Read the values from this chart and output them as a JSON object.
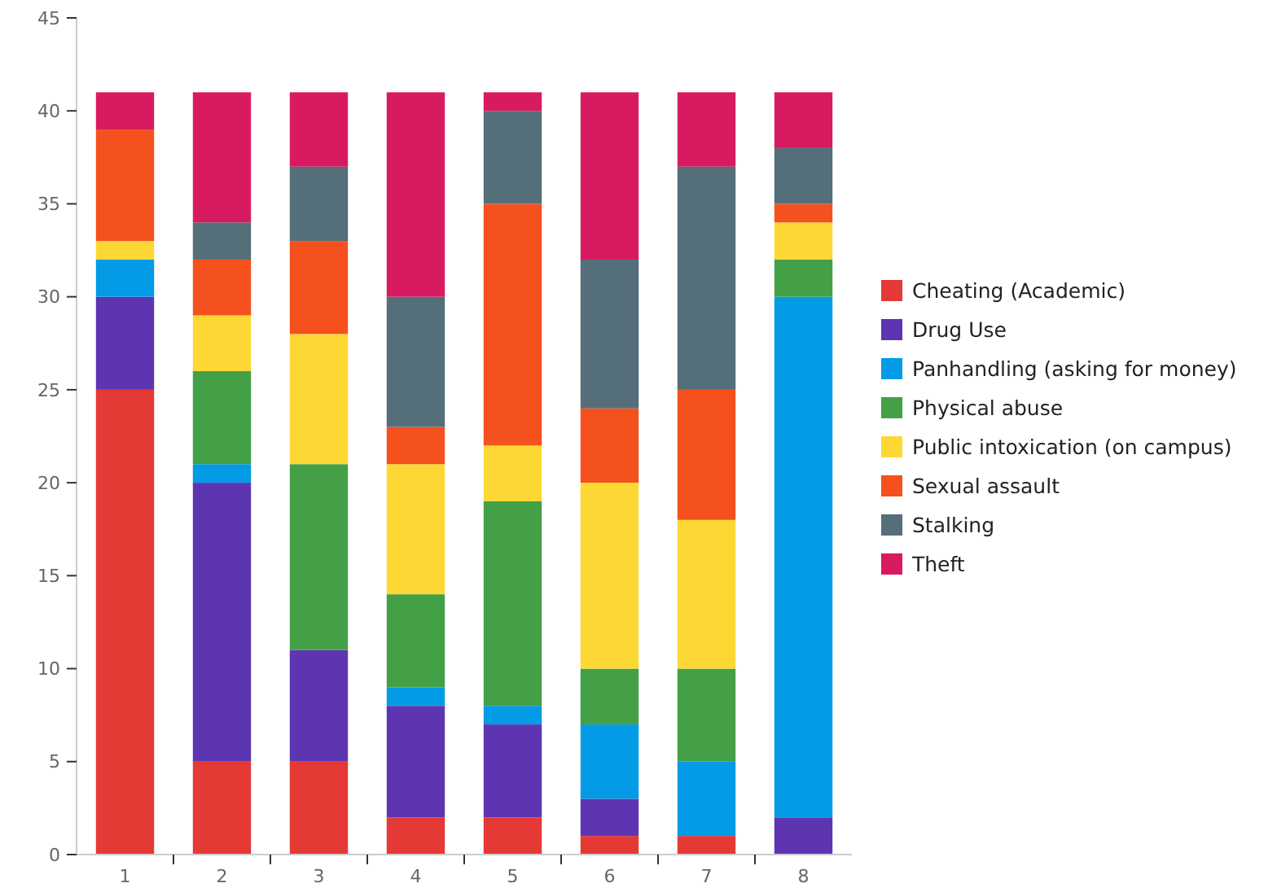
{
  "chart_data": {
    "type": "bar",
    "stacked": true,
    "categories": [
      "1",
      "2",
      "3",
      "4",
      "5",
      "6",
      "7",
      "8"
    ],
    "ylim": [
      0,
      45
    ],
    "yticks": [
      0,
      5,
      10,
      15,
      20,
      25,
      30,
      35,
      40,
      45
    ],
    "grid": false,
    "legend": "right",
    "series": [
      {
        "name": "Cheating (Academic)",
        "color": "#e53935",
        "values": [
          25,
          5,
          5,
          2,
          2,
          1,
          1,
          0
        ]
      },
      {
        "name": "Drug Use",
        "color": "#5e35b1",
        "values": [
          5,
          15,
          6,
          6,
          5,
          2,
          0,
          2
        ]
      },
      {
        "name": "Panhandling (asking for money)",
        "color": "#039be5",
        "values": [
          2,
          1,
          0,
          1,
          1,
          4,
          4,
          28
        ]
      },
      {
        "name": "Physical abuse",
        "color": "#43a047",
        "values": [
          0,
          5,
          10,
          5,
          11,
          3,
          5,
          2
        ]
      },
      {
        "name": "Public intoxication (on campus)",
        "color": "#fdd835",
        "values": [
          1,
          3,
          7,
          7,
          3,
          10,
          8,
          2
        ]
      },
      {
        "name": "Sexual assault",
        "color": "#f4511e",
        "values": [
          6,
          3,
          5,
          2,
          13,
          4,
          7,
          1
        ]
      },
      {
        "name": "Stalking",
        "color": "#546e7a",
        "values": [
          0,
          2,
          4,
          7,
          5,
          8,
          12,
          3
        ]
      },
      {
        "name": "Theft",
        "color": "#d81b60",
        "values": [
          2,
          7,
          4,
          11,
          1,
          9,
          4,
          3
        ]
      }
    ]
  }
}
